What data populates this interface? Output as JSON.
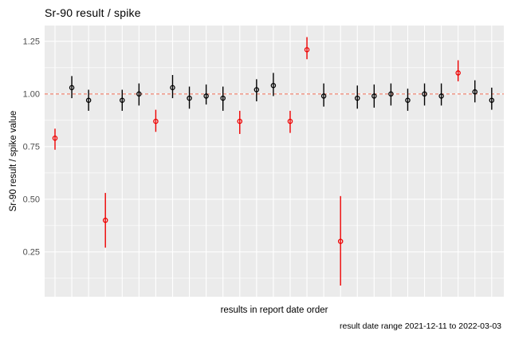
{
  "chart_data": {
    "type": "scatter",
    "subtype": "pointrange",
    "title": "Sr-90 result / spike",
    "xlabel": "results in report date order",
    "ylabel": "Sr-90 result / spike value",
    "caption": "result date range 2021-12-11 to 2022-03-03",
    "ylim": [
      0.037,
      1.325
    ],
    "yticks": [
      0.25,
      0.5,
      0.75,
      1.0,
      1.25
    ],
    "ytick_labels": [
      "0.25",
      "0.50",
      "0.75",
      "1.00",
      "1.25"
    ],
    "x_tick_labels_shown": false,
    "grid": {
      "horizontal": "major+minor",
      "vertical": "one line per point",
      "color": "#FFFFFF"
    },
    "legend": "none",
    "ref_line": {
      "y": 1.0,
      "style": "dashed",
      "color": "#F0907E"
    },
    "colors": {
      "black_point": "#000000",
      "red_point": "#EE0000",
      "panel_bg": "#EBEBEB",
      "tick_text": "#4D4D4D"
    },
    "points": [
      {
        "i": 1,
        "value": 0.79,
        "lo": 0.735,
        "hi": 0.835,
        "flag": "red"
      },
      {
        "i": 2,
        "value": 1.03,
        "lo": 0.98,
        "hi": 1.085,
        "flag": "black"
      },
      {
        "i": 3,
        "value": 0.97,
        "lo": 0.92,
        "hi": 1.02,
        "flag": "black"
      },
      {
        "i": 4,
        "value": 0.4,
        "lo": 0.27,
        "hi": 0.53,
        "flag": "red"
      },
      {
        "i": 5,
        "value": 0.97,
        "lo": 0.92,
        "hi": 1.02,
        "flag": "black"
      },
      {
        "i": 6,
        "value": 1.0,
        "lo": 0.945,
        "hi": 1.05,
        "flag": "black"
      },
      {
        "i": 7,
        "value": 0.87,
        "lo": 0.82,
        "hi": 0.925,
        "flag": "red"
      },
      {
        "i": 8,
        "value": 1.03,
        "lo": 0.98,
        "hi": 1.09,
        "flag": "black"
      },
      {
        "i": 9,
        "value": 0.98,
        "lo": 0.93,
        "hi": 1.035,
        "flag": "black"
      },
      {
        "i": 10,
        "value": 0.99,
        "lo": 0.95,
        "hi": 1.045,
        "flag": "black"
      },
      {
        "i": 11,
        "value": 0.98,
        "lo": 0.92,
        "hi": 1.035,
        "flag": "black"
      },
      {
        "i": 12,
        "value": 0.87,
        "lo": 0.81,
        "hi": 0.92,
        "flag": "red"
      },
      {
        "i": 13,
        "value": 1.02,
        "lo": 0.965,
        "hi": 1.07,
        "flag": "black"
      },
      {
        "i": 14,
        "value": 1.04,
        "lo": 0.99,
        "hi": 1.1,
        "flag": "black"
      },
      {
        "i": 15,
        "value": 0.87,
        "lo": 0.815,
        "hi": 0.92,
        "flag": "red"
      },
      {
        "i": 16,
        "value": 1.21,
        "lo": 1.165,
        "hi": 1.27,
        "flag": "red"
      },
      {
        "i": 17,
        "value": 0.99,
        "lo": 0.94,
        "hi": 1.05,
        "flag": "black"
      },
      {
        "i": 18,
        "value": 0.3,
        "lo": 0.09,
        "hi": 0.515,
        "flag": "red"
      },
      {
        "i": 19,
        "value": 0.98,
        "lo": 0.93,
        "hi": 1.04,
        "flag": "black"
      },
      {
        "i": 20,
        "value": 0.99,
        "lo": 0.935,
        "hi": 1.045,
        "flag": "black"
      },
      {
        "i": 21,
        "value": 1.0,
        "lo": 0.945,
        "hi": 1.05,
        "flag": "black"
      },
      {
        "i": 22,
        "value": 0.97,
        "lo": 0.92,
        "hi": 1.025,
        "flag": "black"
      },
      {
        "i": 23,
        "value": 1.0,
        "lo": 0.945,
        "hi": 1.05,
        "flag": "black"
      },
      {
        "i": 24,
        "value": 0.99,
        "lo": 0.945,
        "hi": 1.05,
        "flag": "black"
      },
      {
        "i": 25,
        "value": 1.1,
        "lo": 1.06,
        "hi": 1.16,
        "flag": "red"
      },
      {
        "i": 26,
        "value": 1.01,
        "lo": 0.96,
        "hi": 1.065,
        "flag": "black"
      },
      {
        "i": 27,
        "value": 0.97,
        "lo": 0.925,
        "hi": 1.03,
        "flag": "black"
      }
    ]
  }
}
